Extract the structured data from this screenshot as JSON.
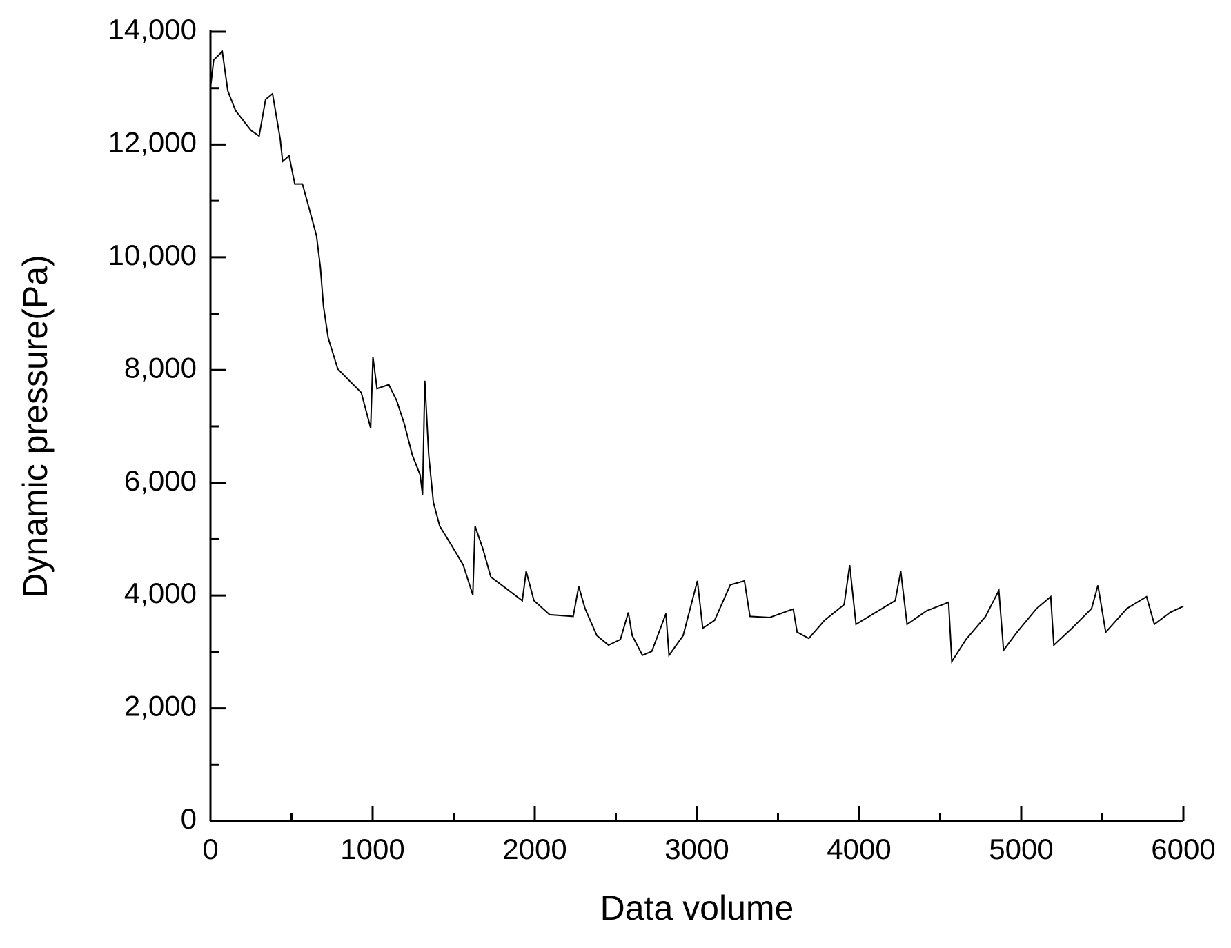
{
  "chart_data": {
    "type": "line",
    "x_label": "Data volume",
    "y_label": "Dynamic pressure(Pa)",
    "xlim": [
      0,
      6000
    ],
    "ylim": [
      0,
      14000
    ],
    "xticks": [
      0,
      1000,
      2000,
      3000,
      4000,
      5000,
      6000
    ],
    "x_minor_ticks": [
      500,
      1500,
      2500,
      3500,
      4500,
      5500
    ],
    "yticks": [
      {
        "value": 0,
        "label": "0"
      },
      {
        "value": 2000,
        "label": "2,000"
      },
      {
        "value": 4000,
        "label": "4,000"
      },
      {
        "value": 6000,
        "label": "6,000"
      },
      {
        "value": 8000,
        "label": "8,000"
      },
      {
        "value": 10000,
        "label": "10,000"
      },
      {
        "value": 12000,
        "label": "12,000"
      },
      {
        "value": 14000,
        "label": "14,000"
      }
    ],
    "y_minor_ticks": [
      1000,
      3000,
      5000,
      7000,
      9000,
      11000,
      13000
    ],
    "grid": false,
    "series": [
      {
        "name": "Dynamic pressure",
        "color": "#000000",
        "x": [
          0,
          20,
          73,
          107,
          155,
          250,
          300,
          340,
          383,
          430,
          445,
          485,
          520,
          567,
          615,
          654,
          678,
          697,
          726,
          785,
          857,
          930,
          988,
          1002,
          1027,
          1100,
          1148,
          1196,
          1245,
          1293,
          1308,
          1322,
          1346,
          1375,
          1414,
          1487,
          1559,
          1618,
          1632,
          1681,
          1729,
          1826,
          1923,
          1947,
          1995,
          2092,
          2237,
          2271,
          2310,
          2383,
          2455,
          2528,
          2577,
          2601,
          2664,
          2722,
          2809,
          2828,
          2915,
          3003,
          3036,
          3109,
          3206,
          3293,
          3327,
          3448,
          3594,
          3618,
          3690,
          3787,
          3908,
          3942,
          3981,
          4102,
          4223,
          4257,
          4296,
          4417,
          4552,
          4572,
          4659,
          4780,
          4862,
          4891,
          4974,
          5095,
          5182,
          5201,
          5313,
          5434,
          5473,
          5521,
          5652,
          5773,
          5821,
          5918,
          6000
        ],
        "values": [
          13000,
          13500,
          13650,
          12950,
          12600,
          12250,
          12150,
          12800,
          12900,
          12100,
          11700,
          11800,
          11300,
          11300,
          10800,
          10380,
          9820,
          9130,
          8570,
          8020,
          7810,
          7600,
          6970,
          8230,
          7670,
          7740,
          7460,
          7040,
          6490,
          6140,
          5790,
          7810,
          6490,
          5650,
          5230,
          4890,
          4540,
          4010,
          5230,
          4820,
          4330,
          4120,
          3910,
          4430,
          3910,
          3660,
          3630,
          4160,
          3770,
          3290,
          3120,
          3220,
          3700,
          3290,
          2940,
          3010,
          3680,
          2940,
          3290,
          4260,
          3420,
          3560,
          4190,
          4260,
          3630,
          3610,
          3760,
          3350,
          3240,
          3560,
          3840,
          4540,
          3490,
          3700,
          3910,
          4430,
          3490,
          3730,
          3880,
          2830,
          3220,
          3630,
          4090,
          3030,
          3350,
          3770,
          3980,
          3120,
          3420,
          3770,
          4180,
          3350,
          3770,
          3980,
          3490,
          3700,
          3810
        ]
      }
    ]
  }
}
